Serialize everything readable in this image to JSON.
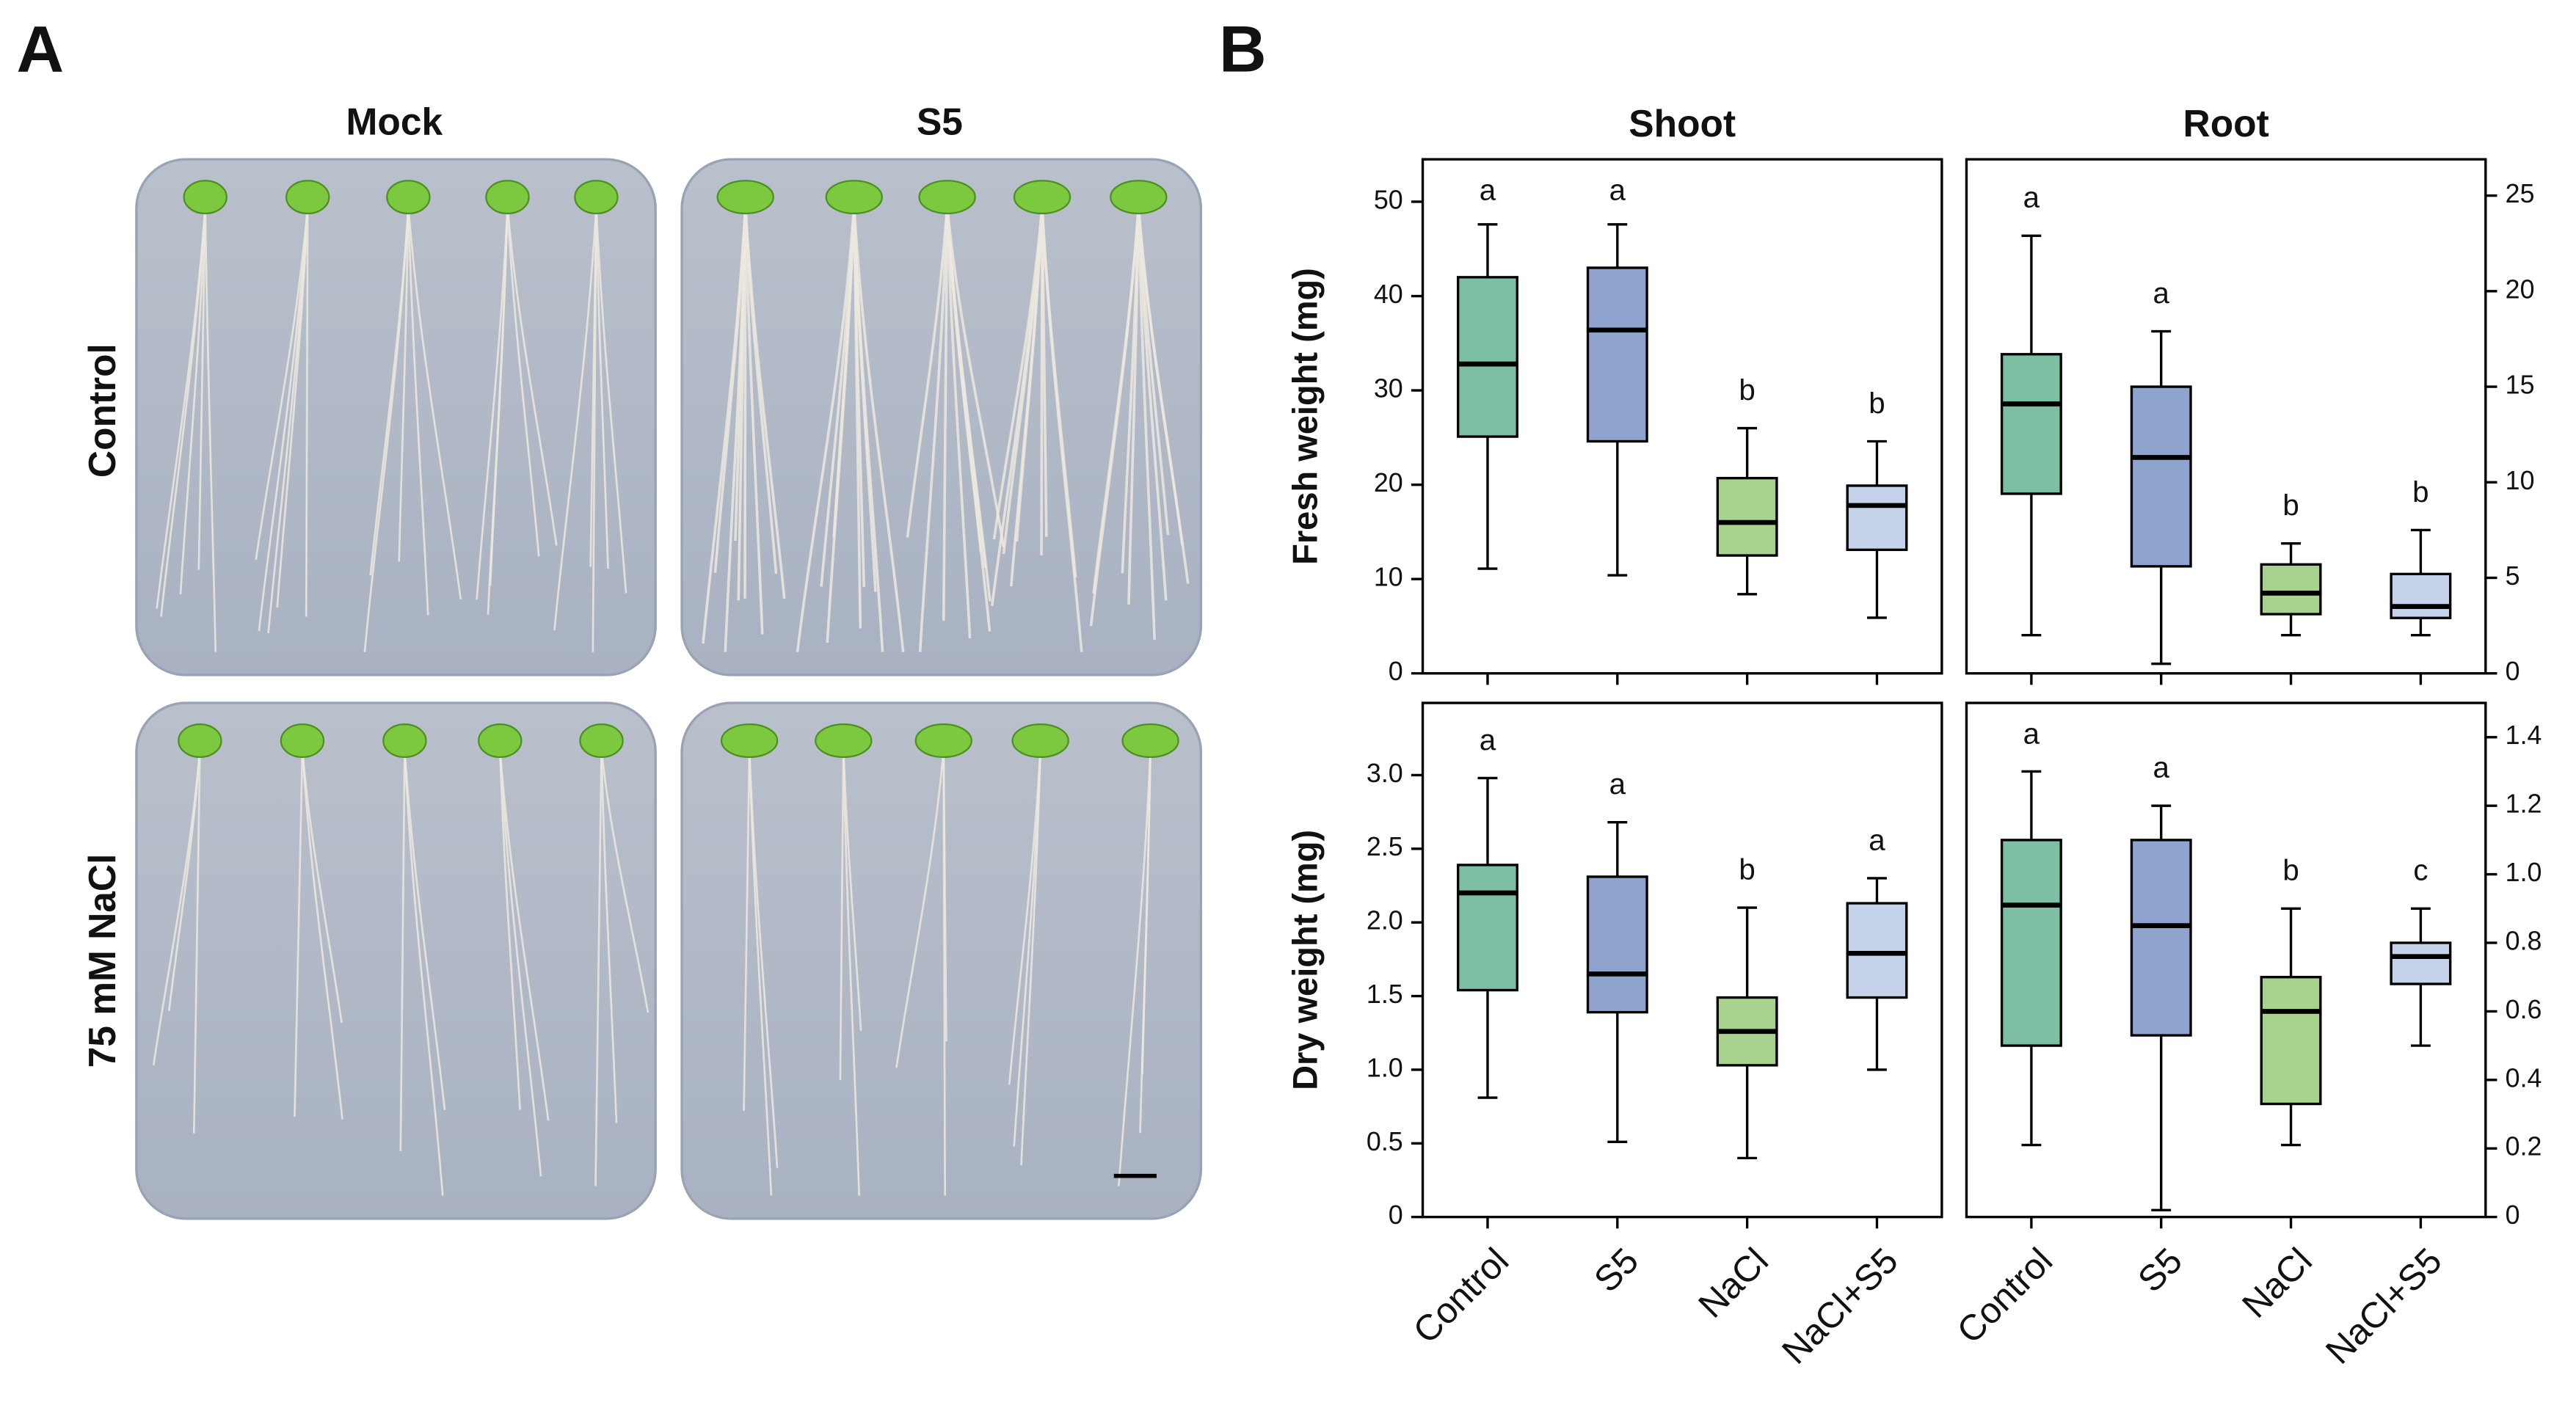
{
  "panel_a": {
    "label": "A",
    "columns": [
      "Mock",
      "S5"
    ],
    "rows": [
      "Control",
      "75 mM NaCl"
    ]
  },
  "panel_b": {
    "label": "B"
  },
  "chart_data": [
    {
      "type": "box",
      "title": "Shoot",
      "ylabel": "Fresh weight (mg)",
      "y_axis_side": "left",
      "ylim": [
        0,
        54.5
      ],
      "yticks": [
        0,
        10,
        20,
        30,
        40,
        50
      ],
      "boxes": [
        {
          "low": 11.1,
          "q1": 25.1,
          "median": 32.8,
          "q3": 42,
          "high": 47.6,
          "color": "#7dbfa3",
          "letter": "a"
        },
        {
          "low": 10.4,
          "q1": 24.6,
          "median": 36.4,
          "q3": 43,
          "high": 47.6,
          "color": "#8fa3cf",
          "letter": "a"
        },
        {
          "low": 8.4,
          "q1": 12.5,
          "median": 16,
          "q3": 20.7,
          "high": 26,
          "color": "#a8d38f",
          "letter": "b"
        },
        {
          "low": 5.9,
          "q1": 13.1,
          "median": 17.8,
          "q3": 19.9,
          "high": 24.6,
          "color": "#c5d3ea",
          "letter": "b"
        }
      ]
    },
    {
      "type": "box",
      "title": "Root",
      "y_axis_side": "right",
      "ylim": [
        0,
        26.9
      ],
      "yticks": [
        0,
        5,
        10,
        15,
        20,
        25
      ],
      "boxes": [
        {
          "low": 2.0,
          "q1": 9.4,
          "median": 14.1,
          "q3": 16.7,
          "high": 22.9,
          "color": "#7dbfa3",
          "letter": "a"
        },
        {
          "low": 0.5,
          "q1": 5.6,
          "median": 11.3,
          "q3": 15.0,
          "high": 17.9,
          "color": "#8fa3cf",
          "letter": "a"
        },
        {
          "low": 2.0,
          "q1": 3.1,
          "median": 4.2,
          "q3": 5.7,
          "high": 6.8,
          "color": "#a8d38f",
          "letter": "b"
        },
        {
          "low": 2.0,
          "q1": 2.9,
          "median": 3.5,
          "q3": 5.2,
          "high": 7.5,
          "color": "#c5d3ea",
          "letter": "b"
        }
      ]
    },
    {
      "type": "box",
      "ylabel": "Dry weight (mg)",
      "y_axis_side": "left",
      "categories": [
        "Control",
        "S5",
        "NaCl",
        "NaCl+S5"
      ],
      "ylim": [
        0,
        3.49
      ],
      "yticks": [
        0,
        0.5,
        {
          "value": 1,
          "label": "1.0"
        },
        1.5,
        {
          "value": 2,
          "label": "2.0"
        },
        2.5,
        {
          "value": 3,
          "label": "3.0"
        }
      ],
      "boxes": [
        {
          "low": 0.81,
          "q1": 1.54,
          "median": 2.2,
          "q3": 2.39,
          "high": 2.98,
          "color": "#7dbfa3",
          "letter": "a"
        },
        {
          "low": 0.51,
          "q1": 1.39,
          "median": 1.65,
          "q3": 2.31,
          "high": 2.68,
          "color": "#8fa3cf",
          "letter": "a"
        },
        {
          "low": 0.4,
          "q1": 1.03,
          "median": 1.26,
          "q3": 1.49,
          "high": 2.1,
          "color": "#a8d38f",
          "letter": "b"
        },
        {
          "low": 1.0,
          "q1": 1.49,
          "median": 1.79,
          "q3": 2.13,
          "high": 2.3,
          "color": "#c5d3ea",
          "letter": "a"
        }
      ]
    },
    {
      "type": "box",
      "y_axis_side": "right",
      "categories": [
        "Control",
        "S5",
        "NaCl",
        "NaCl+S5"
      ],
      "ylim": [
        0,
        1.5
      ],
      "yticks": [
        0,
        0.2,
        0.4,
        0.6,
        0.8,
        {
          "value": 1,
          "label": "1.0"
        },
        1.2,
        1.4
      ],
      "boxes": [
        {
          "low": 0.21,
          "q1": 0.5,
          "median": 0.91,
          "q3": 1.1,
          "high": 1.3,
          "color": "#7dbfa3",
          "letter": "a"
        },
        {
          "low": 0.02,
          "q1": 0.53,
          "median": 0.85,
          "q3": 1.1,
          "high": 1.2,
          "color": "#8fa3cf",
          "letter": "a"
        },
        {
          "low": 0.21,
          "q1": 0.33,
          "median": 0.6,
          "q3": 0.7,
          "high": 0.9,
          "color": "#a8d38f",
          "letter": "b"
        },
        {
          "low": 0.5,
          "q1": 0.68,
          "median": 0.76,
          "q3": 0.8,
          "high": 0.9,
          "color": "#c5d3ea",
          "letter": "c"
        }
      ]
    }
  ]
}
